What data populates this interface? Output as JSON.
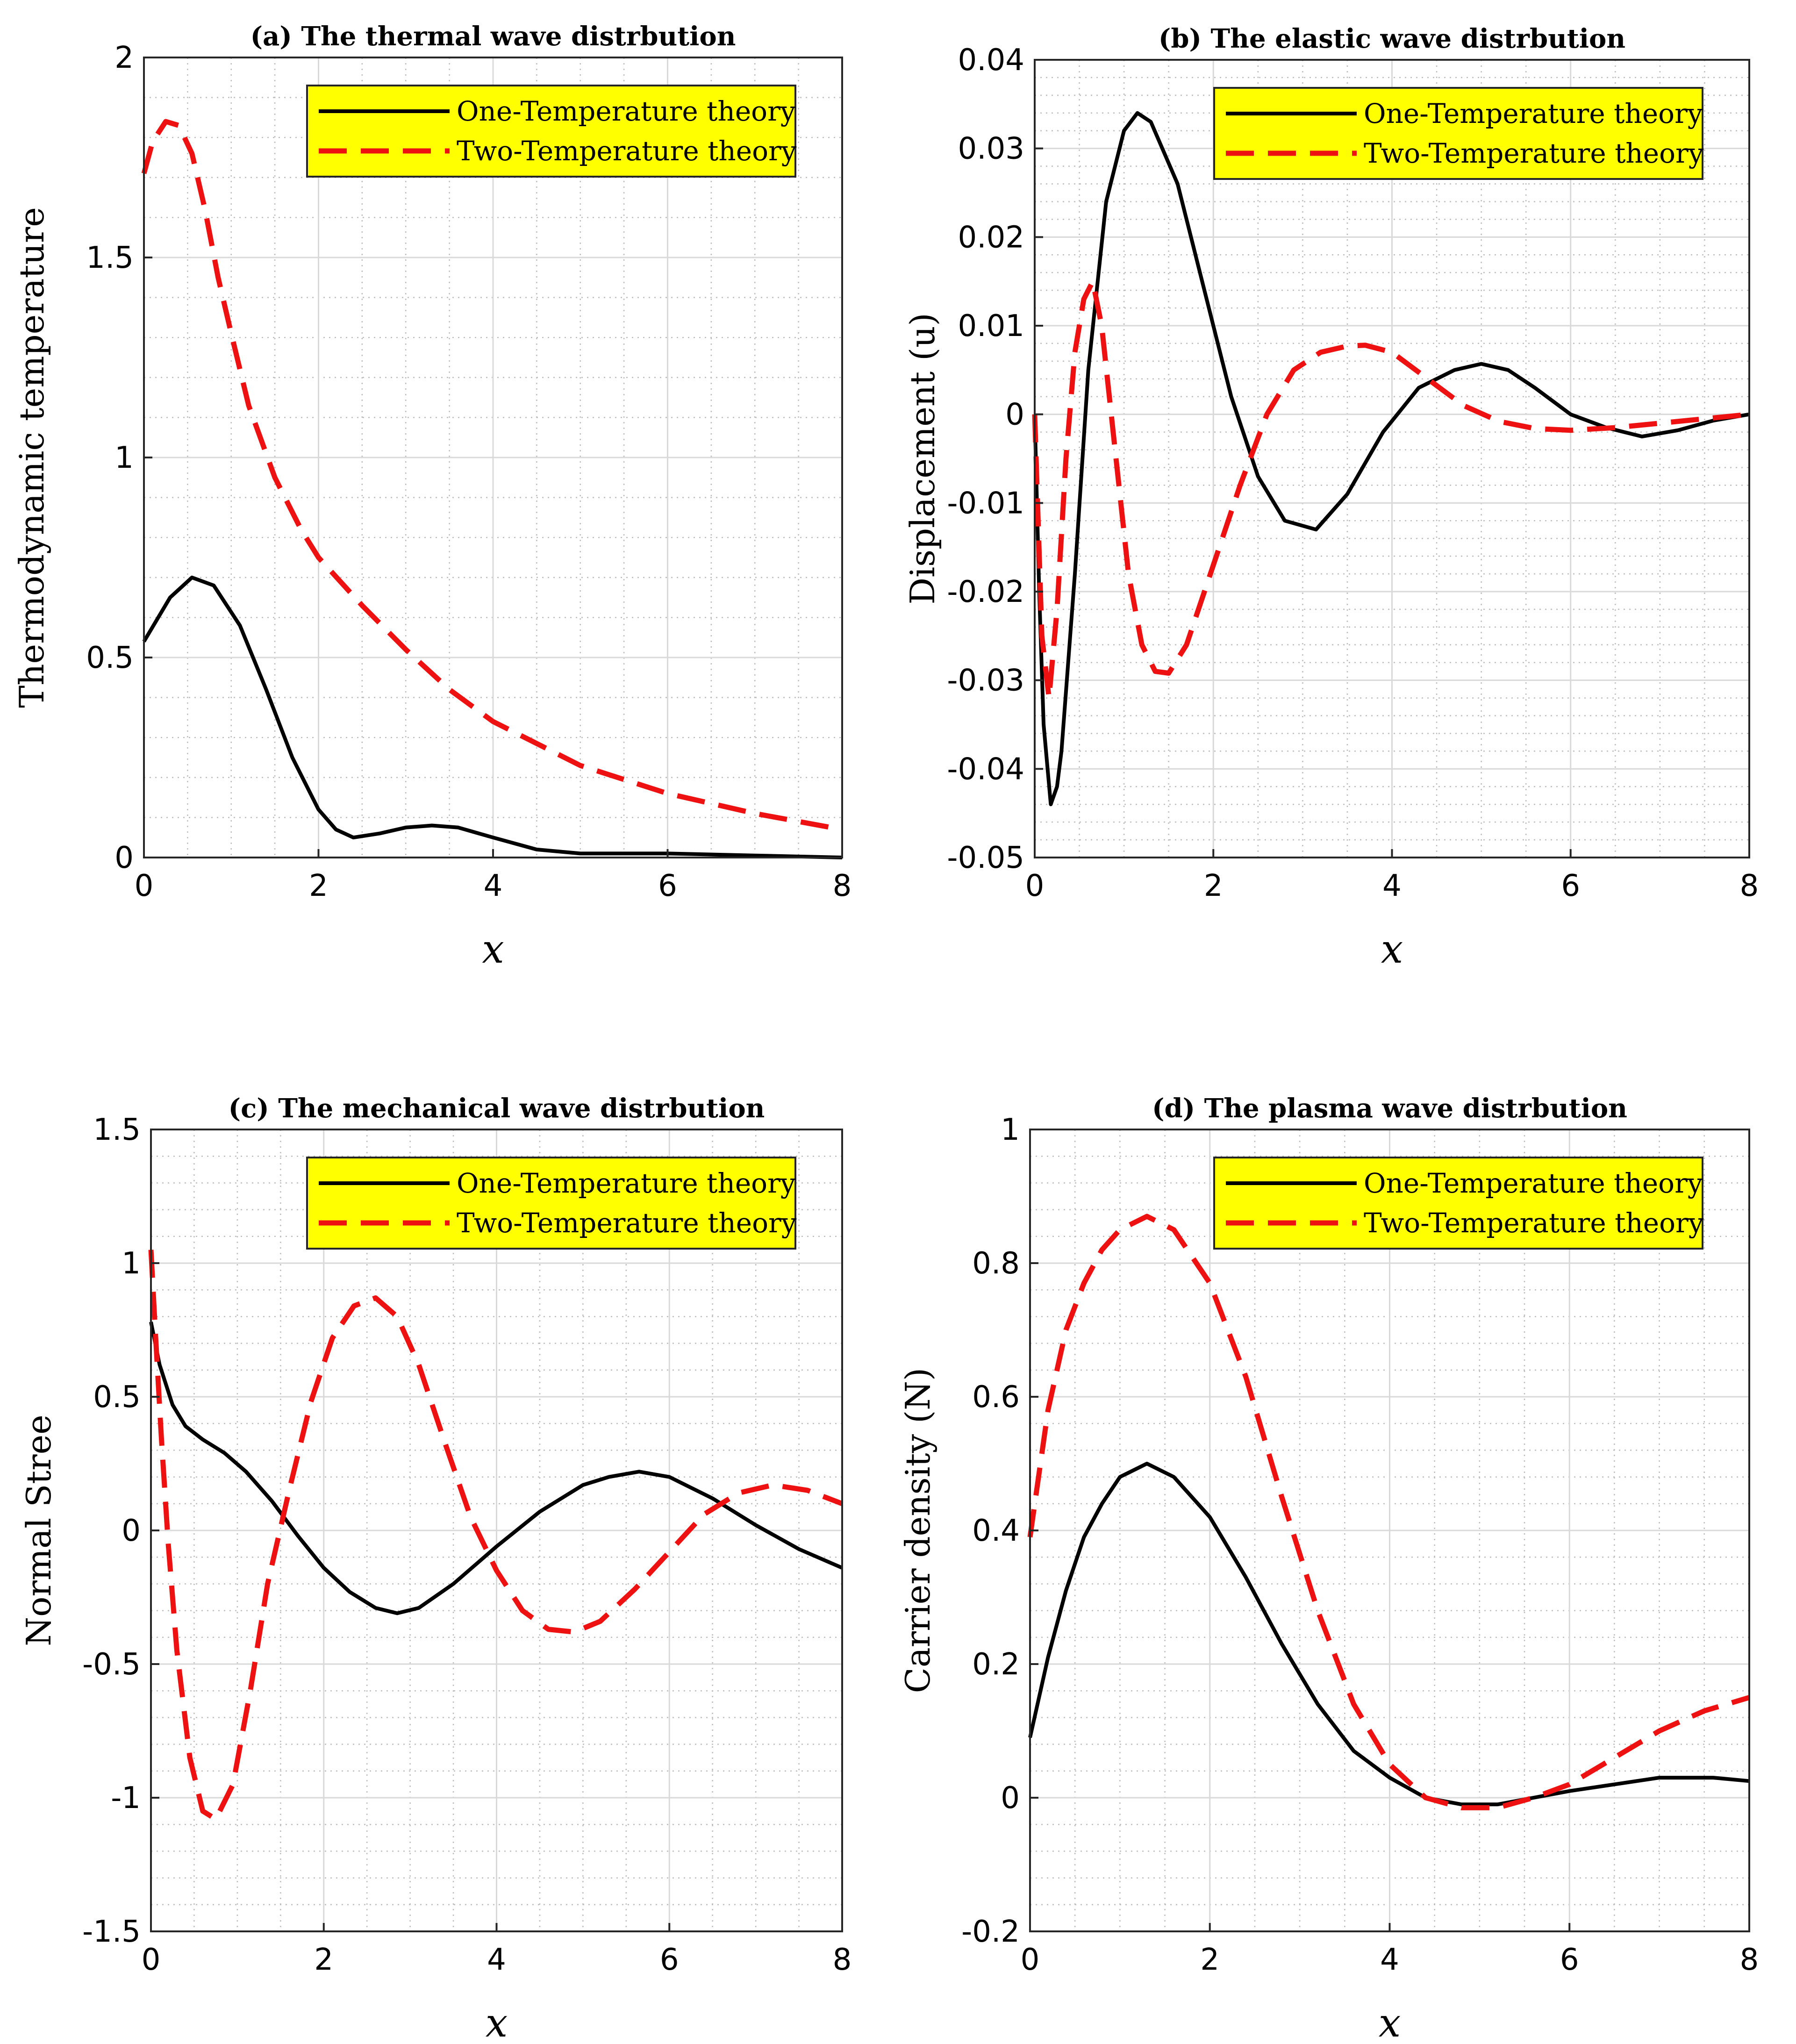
{
  "figure": {
    "legend_labels": [
      "One-Temperature theory",
      "Two-Temperature theory"
    ],
    "colors": {
      "one_temperature": "#000000",
      "two_temperature": "#ee1111",
      "legend_bg": "#ffff00",
      "grid_major": "#d9d9d9",
      "grid_minor": "#bdbdbd"
    }
  },
  "chart_data": [
    {
      "panel": "a",
      "type": "line",
      "title": "(a) The thermal wave distrbution",
      "xlabel": "x",
      "ylabel": "Thermodynamic temperature",
      "xlim": [
        0,
        8
      ],
      "ylim": [
        0,
        2
      ],
      "xticks": [
        0,
        2,
        4,
        6,
        8
      ],
      "yticks": [
        0,
        0.5,
        1,
        1.5,
        2
      ],
      "ytick_labels": [
        "0",
        "0.5",
        "1",
        "1.5",
        "2"
      ],
      "legend_position": "top-right",
      "series": [
        {
          "name": "One-Temperature theory",
          "style": "solid",
          "x": [
            0,
            0.3,
            0.55,
            0.8,
            1.1,
            1.4,
            1.7,
            2.0,
            2.2,
            2.4,
            2.7,
            3.0,
            3.3,
            3.6,
            4.0,
            4.5,
            5.0,
            6.0,
            7.0,
            8.0
          ],
          "y": [
            0.54,
            0.65,
            0.7,
            0.68,
            0.58,
            0.42,
            0.25,
            0.12,
            0.07,
            0.05,
            0.06,
            0.075,
            0.08,
            0.075,
            0.05,
            0.02,
            0.01,
            0.01,
            0.005,
            0.0
          ]
        },
        {
          "name": "Two-Temperature theory",
          "style": "dashed",
          "x": [
            0,
            0.1,
            0.25,
            0.4,
            0.55,
            0.7,
            0.85,
            1.0,
            1.2,
            1.5,
            1.8,
            2.0,
            2.5,
            3.0,
            3.5,
            4.0,
            5.0,
            6.0,
            7.0,
            8.0
          ],
          "y": [
            1.71,
            1.79,
            1.84,
            1.83,
            1.76,
            1.62,
            1.45,
            1.31,
            1.13,
            0.95,
            0.82,
            0.75,
            0.63,
            0.52,
            0.42,
            0.34,
            0.23,
            0.16,
            0.11,
            0.07
          ]
        }
      ]
    },
    {
      "panel": "b",
      "type": "line",
      "title": "(b) The elastic wave distrbution",
      "xlabel": "x",
      "ylabel": "Displacement (u)",
      "xlim": [
        0,
        8
      ],
      "ylim": [
        -0.05,
        0.04
      ],
      "xticks": [
        0,
        2,
        4,
        6,
        8
      ],
      "yticks": [
        -0.05,
        -0.04,
        -0.03,
        -0.02,
        -0.01,
        0,
        0.01,
        0.02,
        0.03,
        0.04
      ],
      "ytick_labels": [
        "-0.05",
        "-0.04",
        "-0.03",
        "-0.02",
        "-0.01",
        "0",
        "0.01",
        "0.02",
        "0.03",
        "0.04"
      ],
      "legend_position": "top-right",
      "series": [
        {
          "name": "One-Temperature theory",
          "style": "solid",
          "x": [
            0,
            0.05,
            0.1,
            0.18,
            0.25,
            0.3,
            0.45,
            0.6,
            0.8,
            1.0,
            1.15,
            1.3,
            1.6,
            1.9,
            2.2,
            2.5,
            2.8,
            3.15,
            3.5,
            3.9,
            4.3,
            4.7,
            5.0,
            5.3,
            5.6,
            6.0,
            6.4,
            6.8,
            7.2,
            7.6,
            8.0
          ],
          "y": [
            0,
            -0.02,
            -0.035,
            -0.044,
            -0.042,
            -0.038,
            -0.018,
            0.005,
            0.024,
            0.032,
            0.034,
            0.033,
            0.026,
            0.014,
            0.002,
            -0.007,
            -0.012,
            -0.013,
            -0.009,
            -0.002,
            0.003,
            0.005,
            0.0057,
            0.005,
            0.003,
            0.0,
            -0.0015,
            -0.0025,
            -0.0018,
            -0.0007,
            0.0
          ]
        },
        {
          "name": "Two-Temperature theory",
          "style": "dashed",
          "x": [
            0,
            0.08,
            0.16,
            0.25,
            0.35,
            0.45,
            0.55,
            0.65,
            0.75,
            0.9,
            1.05,
            1.2,
            1.35,
            1.5,
            1.7,
            2.0,
            2.3,
            2.6,
            2.9,
            3.2,
            3.5,
            3.7,
            4.0,
            4.4,
            4.8,
            5.2,
            5.6,
            6.0,
            6.5,
            7.0,
            7.5,
            8.0
          ],
          "y": [
            0,
            -0.025,
            -0.032,
            -0.022,
            -0.005,
            0.007,
            0.013,
            0.015,
            0.01,
            -0.004,
            -0.018,
            -0.026,
            -0.029,
            -0.0292,
            -0.026,
            -0.017,
            -0.008,
            0.0,
            0.005,
            0.007,
            0.0077,
            0.0078,
            0.007,
            0.004,
            0.001,
            -0.0008,
            -0.0016,
            -0.0018,
            -0.0015,
            -0.001,
            -0.0005,
            0.0
          ]
        }
      ]
    },
    {
      "panel": "c",
      "type": "line",
      "title": "(c) The mechanical wave distrbution",
      "xlabel": "x",
      "ylabel": "Normal Stree",
      "xlim": [
        0,
        8
      ],
      "ylim": [
        -1.5,
        1.5
      ],
      "xticks": [
        0,
        2,
        4,
        6,
        8
      ],
      "yticks": [
        -1.5,
        -1,
        -0.5,
        0,
        0.5,
        1,
        1.5
      ],
      "ytick_labels": [
        "-1.5",
        "-1",
        "-0.5",
        "0",
        "0.5",
        "1",
        "1.5"
      ],
      "legend_position": "top-right",
      "series": [
        {
          "name": "One-Temperature theory",
          "style": "solid",
          "x": [
            0,
            0.1,
            0.25,
            0.4,
            0.6,
            0.85,
            1.1,
            1.4,
            1.7,
            2.0,
            2.3,
            2.6,
            2.85,
            3.1,
            3.5,
            4.0,
            4.5,
            5.0,
            5.3,
            5.65,
            6.0,
            6.5,
            7.0,
            7.5,
            8.0
          ],
          "y": [
            0.78,
            0.62,
            0.47,
            0.39,
            0.34,
            0.29,
            0.22,
            0.11,
            -0.02,
            -0.14,
            -0.23,
            -0.29,
            -0.31,
            -0.29,
            -0.2,
            -0.06,
            0.07,
            0.17,
            0.2,
            0.22,
            0.2,
            0.12,
            0.02,
            -0.07,
            -0.14
          ]
        },
        {
          "name": "Two-Temperature theory",
          "style": "dashed",
          "x": [
            0,
            0.05,
            0.12,
            0.2,
            0.3,
            0.45,
            0.6,
            0.75,
            0.95,
            1.15,
            1.35,
            1.6,
            1.85,
            2.1,
            2.35,
            2.6,
            2.85,
            3.1,
            3.4,
            3.7,
            4.0,
            4.3,
            4.6,
            4.9,
            5.2,
            5.6,
            6.0,
            6.4,
            6.8,
            7.2,
            7.6,
            8.0
          ],
          "y": [
            1.05,
            0.75,
            0.35,
            -0.05,
            -0.45,
            -0.85,
            -1.05,
            -1.08,
            -0.95,
            -0.6,
            -0.2,
            0.15,
            0.48,
            0.72,
            0.84,
            0.87,
            0.8,
            0.62,
            0.33,
            0.05,
            -0.15,
            -0.3,
            -0.37,
            -0.38,
            -0.34,
            -0.22,
            -0.08,
            0.06,
            0.14,
            0.17,
            0.15,
            0.1
          ]
        }
      ]
    },
    {
      "panel": "d",
      "type": "line",
      "title": "(d) The plasma wave distrbution",
      "xlabel": "x",
      "ylabel": "Carrier density (N)",
      "xlim": [
        0,
        8
      ],
      "ylim": [
        -0.2,
        1
      ],
      "xticks": [
        0,
        2,
        4,
        6,
        8
      ],
      "yticks": [
        -0.2,
        0,
        0.2,
        0.4,
        0.6,
        0.8,
        1
      ],
      "ytick_labels": [
        "-0.2",
        "0",
        "0.2",
        "0.4",
        "0.6",
        "0.8",
        "1"
      ],
      "legend_position": "top-right",
      "series": [
        {
          "name": "One-Temperature theory",
          "style": "solid",
          "x": [
            0,
            0.2,
            0.4,
            0.6,
            0.8,
            1.0,
            1.3,
            1.6,
            2.0,
            2.4,
            2.8,
            3.2,
            3.6,
            4.0,
            4.4,
            4.8,
            5.2,
            5.6,
            6.0,
            6.5,
            7.0,
            7.3,
            7.6,
            8.0
          ],
          "y": [
            0.09,
            0.21,
            0.31,
            0.39,
            0.44,
            0.48,
            0.5,
            0.48,
            0.42,
            0.33,
            0.23,
            0.14,
            0.07,
            0.03,
            0.0,
            -0.01,
            -0.01,
            0.0,
            0.01,
            0.02,
            0.03,
            0.03,
            0.03,
            0.025
          ]
        },
        {
          "name": "Two-Temperature theory",
          "style": "dashed",
          "x": [
            0,
            0.2,
            0.4,
            0.6,
            0.8,
            1.0,
            1.3,
            1.6,
            2.0,
            2.4,
            2.8,
            3.2,
            3.6,
            4.0,
            4.4,
            4.8,
            5.2,
            5.6,
            6.0,
            6.5,
            7.0,
            7.5,
            8.0
          ],
          "y": [
            0.39,
            0.58,
            0.7,
            0.77,
            0.82,
            0.85,
            0.87,
            0.85,
            0.77,
            0.63,
            0.45,
            0.28,
            0.14,
            0.05,
            0.0,
            -0.015,
            -0.015,
            0.0,
            0.02,
            0.06,
            0.1,
            0.13,
            0.15
          ]
        }
      ]
    }
  ]
}
